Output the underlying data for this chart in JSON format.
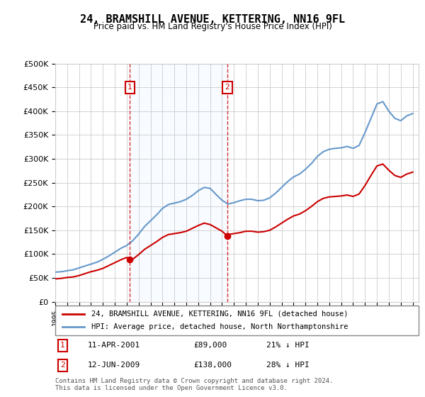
{
  "title": "24, BRAMSHILL AVENUE, KETTERING, NN16 9FL",
  "subtitle": "Price paid vs. HM Land Registry's House Price Index (HPI)",
  "legend_line1": "24, BRAMSHILL AVENUE, KETTERING, NN16 9FL (detached house)",
  "legend_line2": "HPI: Average price, detached house, North Northamptonshire",
  "footer1": "Contains HM Land Registry data © Crown copyright and database right 2024.",
  "footer2": "This data is licensed under the Open Government Licence v3.0.",
  "table_row1": [
    "1",
    "11-APR-2001",
    "£89,000",
    "21% ↓ HPI"
  ],
  "table_row2": [
    "2",
    "12-JUN-2009",
    "£138,000",
    "28% ↓ HPI"
  ],
  "red_color": "#cc0000",
  "blue_color": "#6699cc",
  "vline_color": "#cc0000",
  "shade_color": "#ddeeff",
  "background_color": "#ffffff",
  "grid_color": "#cccccc",
  "ylim": [
    0,
    500000
  ],
  "yticks": [
    0,
    50000,
    100000,
    150000,
    200000,
    250000,
    300000,
    350000,
    400000,
    450000,
    500000
  ],
  "ytick_labels": [
    "£0",
    "£50K",
    "£100K",
    "£150K",
    "£200K",
    "£250K",
    "£300K",
    "£350K",
    "£400K",
    "£450K",
    "£500K"
  ],
  "xmin": 1995.0,
  "xmax": 2025.5,
  "sale1_x": 2001.27,
  "sale1_y": 89000,
  "sale2_x": 2009.44,
  "sale2_y": 138000,
  "hpi_x": [
    1995.0,
    1995.5,
    1996.0,
    1996.5,
    1997.0,
    1997.5,
    1998.0,
    1998.5,
    1999.0,
    1999.5,
    2000.0,
    2000.5,
    2001.0,
    2001.5,
    2002.0,
    2002.5,
    2003.0,
    2003.5,
    2004.0,
    2004.5,
    2005.0,
    2005.5,
    2006.0,
    2006.5,
    2007.0,
    2007.5,
    2008.0,
    2008.5,
    2009.0,
    2009.5,
    2010.0,
    2010.5,
    2011.0,
    2011.5,
    2012.0,
    2012.5,
    2013.0,
    2013.5,
    2014.0,
    2014.5,
    2015.0,
    2015.5,
    2016.0,
    2016.5,
    2017.0,
    2017.5,
    2018.0,
    2018.5,
    2019.0,
    2019.5,
    2020.0,
    2020.5,
    2021.0,
    2021.5,
    2022.0,
    2022.5,
    2023.0,
    2023.5,
    2024.0,
    2024.5,
    2025.0
  ],
  "hpi_y": [
    62000,
    63000,
    65000,
    67000,
    71000,
    75000,
    79000,
    83000,
    89000,
    96000,
    104000,
    112000,
    118000,
    128000,
    142000,
    158000,
    170000,
    182000,
    196000,
    204000,
    207000,
    210000,
    215000,
    223000,
    233000,
    240000,
    238000,
    225000,
    213000,
    205000,
    208000,
    212000,
    215000,
    215000,
    212000,
    213000,
    218000,
    228000,
    240000,
    252000,
    262000,
    268000,
    278000,
    290000,
    305000,
    315000,
    320000,
    322000,
    323000,
    326000,
    322000,
    328000,
    355000,
    385000,
    415000,
    420000,
    400000,
    385000,
    380000,
    390000,
    395000
  ],
  "red_x": [
    1995.0,
    1995.5,
    1996.0,
    1996.5,
    1997.0,
    1997.5,
    1998.0,
    1998.5,
    1999.0,
    1999.5,
    2000.0,
    2000.5,
    2001.0,
    2001.27,
    2001.5,
    2002.0,
    2002.5,
    2003.0,
    2003.5,
    2004.0,
    2004.5,
    2005.0,
    2005.5,
    2006.0,
    2006.5,
    2007.0,
    2007.5,
    2008.0,
    2008.5,
    2009.0,
    2009.44,
    2009.5,
    2010.0,
    2010.5,
    2011.0,
    2011.5,
    2012.0,
    2012.5,
    2013.0,
    2013.5,
    2014.0,
    2014.5,
    2015.0,
    2015.5,
    2016.0,
    2016.5,
    2017.0,
    2017.5,
    2018.0,
    2018.5,
    2019.0,
    2019.5,
    2020.0,
    2020.5,
    2021.0,
    2021.5,
    2022.0,
    2022.5,
    2023.0,
    2023.5,
    2024.0,
    2024.5,
    2025.0
  ],
  "red_y": [
    48000,
    49000,
    51000,
    52000,
    55000,
    59000,
    63000,
    66000,
    70000,
    76000,
    82000,
    88000,
    93000,
    89000,
    89000,
    99000,
    110000,
    118000,
    126000,
    135000,
    141000,
    143000,
    145000,
    148000,
    154000,
    160000,
    165000,
    162000,
    155000,
    148000,
    138000,
    141000,
    143000,
    145000,
    148000,
    148000,
    146000,
    147000,
    150000,
    157000,
    165000,
    173000,
    180000,
    184000,
    191000,
    200000,
    210000,
    217000,
    220000,
    221000,
    222000,
    224000,
    221000,
    226000,
    244000,
    265000,
    285000,
    289000,
    276000,
    265000,
    261000,
    268000,
    272000
  ]
}
